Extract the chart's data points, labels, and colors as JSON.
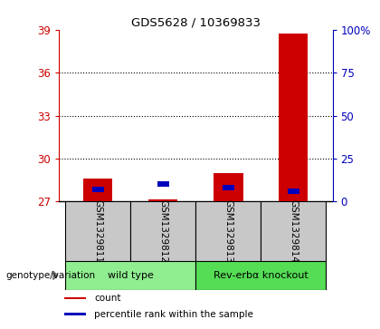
{
  "title": "GDS5628 / 10369833",
  "samples": [
    "GSM1329811",
    "GSM1329812",
    "GSM1329813",
    "GSM1329814"
  ],
  "red_values": [
    28.6,
    27.15,
    29.0,
    38.7
  ],
  "blue_percentiles": [
    7,
    10,
    8,
    6
  ],
  "ylim_left": [
    27,
    39
  ],
  "ylim_right": [
    0,
    100
  ],
  "yticks_left": [
    27,
    30,
    33,
    36,
    39
  ],
  "yticks_right": [
    0,
    25,
    50,
    75,
    100
  ],
  "ytick_labels_right": [
    "0",
    "25",
    "50",
    "75",
    "100%"
  ],
  "grid_values": [
    30,
    33,
    36
  ],
  "bar_width": 0.45,
  "blue_bar_width": 0.18,
  "blue_bar_height": 0.38,
  "groups": [
    {
      "label": "wild type",
      "samples": [
        0,
        1
      ],
      "color": "#90EE90"
    },
    {
      "label": "Rev-erbα knockout",
      "samples": [
        2,
        3
      ],
      "color": "#55DD55"
    }
  ],
  "red_color": "#CC0000",
  "blue_color": "#0000BB",
  "background_color": "#FFFFFF",
  "label_area_color": "#C8C8C8",
  "legend_items": [
    {
      "color": "#CC0000",
      "label": "count"
    },
    {
      "color": "#0000BB",
      "label": "percentile rank within the sample"
    }
  ]
}
